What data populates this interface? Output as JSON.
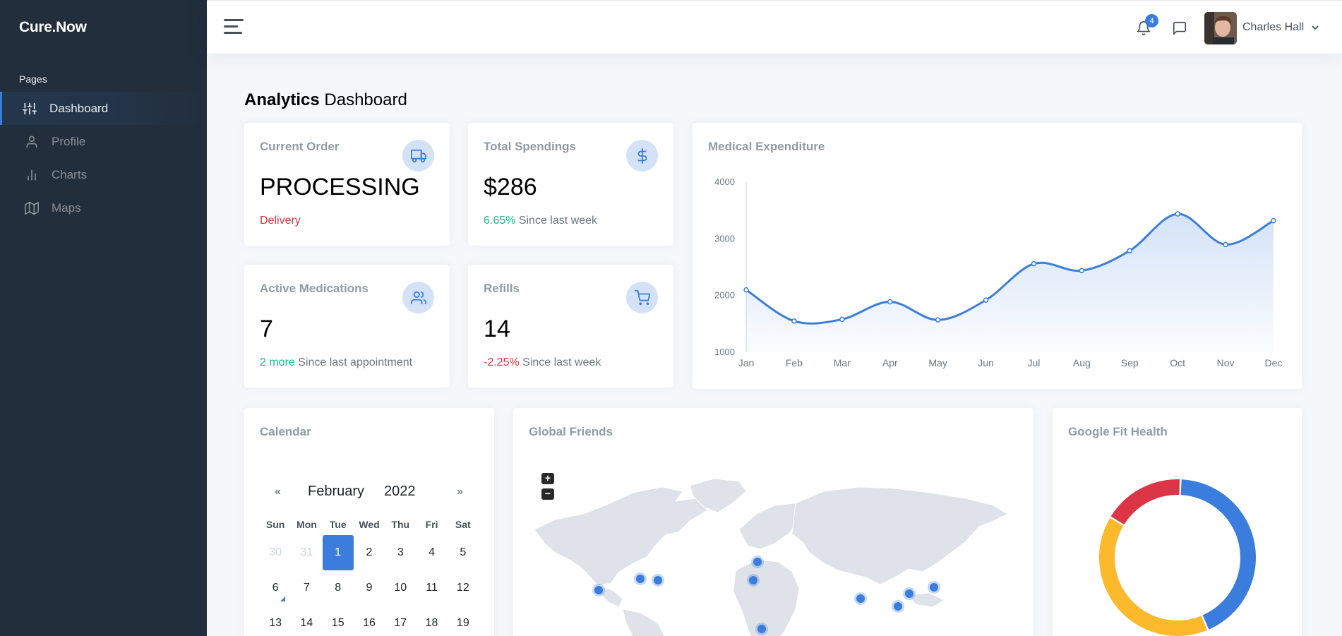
{
  "brand": "Cure.Now",
  "sidebar": {
    "header": "Pages",
    "items": [
      {
        "label": "Dashboard",
        "icon": "sliders-icon",
        "active": true
      },
      {
        "label": "Profile",
        "icon": "user-icon",
        "active": false
      },
      {
        "label": "Charts",
        "icon": "bar-chart-icon",
        "active": false
      },
      {
        "label": "Maps",
        "icon": "map-icon",
        "active": false
      }
    ]
  },
  "topbar": {
    "notifications_count": "4",
    "user_name": "Charles Hall"
  },
  "page": {
    "title_bold": "Analytics",
    "title_rest": " Dashboard"
  },
  "stats": {
    "current_order": {
      "title": "Current Order",
      "value": "PROCESSING",
      "foot_highlight": "Delivery",
      "foot_text": ""
    },
    "total_spendings": {
      "title": "Total Spendings",
      "value": "$286",
      "foot_highlight": "6.65%",
      "foot_text": " Since last week"
    },
    "active_medications": {
      "title": "Active Medications",
      "value": "7",
      "foot_highlight": "2 more",
      "foot_text": " Since last appointment"
    },
    "refills": {
      "title": "Refills",
      "value": "14",
      "foot_highlight": "-2.25%",
      "foot_text": " Since last week"
    }
  },
  "expenditure": {
    "title": "Medical Expenditure"
  },
  "chart_data": {
    "type": "area",
    "title": "Medical Expenditure",
    "categories": [
      "Jan",
      "Feb",
      "Mar",
      "Apr",
      "May",
      "Jun",
      "Jul",
      "Aug",
      "Sep",
      "Oct",
      "Nov",
      "Dec"
    ],
    "values": [
      2100,
      1550,
      1580,
      1890,
      1570,
      1920,
      2560,
      2440,
      2790,
      3440,
      2900,
      3320
    ],
    "yticks": [
      1000,
      2000,
      3000,
      4000
    ],
    "ylim": [
      1000,
      4000
    ],
    "color": "#3b7ddd",
    "grid": false
  },
  "calendar": {
    "title": "Calendar",
    "prev": "«",
    "next": "»",
    "month": "February",
    "year": "2022",
    "weekdays": [
      "Sun",
      "Mon",
      "Tue",
      "Wed",
      "Thu",
      "Fri",
      "Sat"
    ],
    "weeks": [
      [
        "30",
        "31",
        "1",
        "2",
        "3",
        "4",
        "5"
      ],
      [
        "6",
        "7",
        "8",
        "9",
        "10",
        "11",
        "12"
      ],
      [
        "13",
        "14",
        "15",
        "16",
        "17",
        "18",
        "19"
      ]
    ]
  },
  "map": {
    "title": "Global Friends",
    "zoom_in": "+",
    "zoom_out": "−"
  },
  "fit": {
    "title": "Google Fit Health",
    "segments": [
      {
        "color": "#3b7ddd",
        "fraction": 0.43
      },
      {
        "color": "#fcb92c",
        "fraction": 0.4
      },
      {
        "color": "#dc3545",
        "fraction": 0.17
      }
    ]
  }
}
